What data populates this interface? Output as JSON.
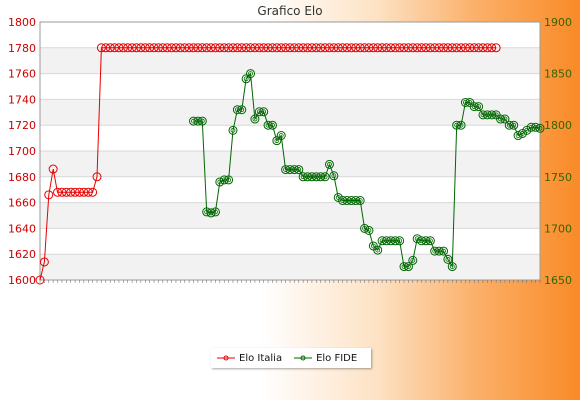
{
  "chart_data": {
    "type": "line",
    "title": "Grafico Elo",
    "y_left": {
      "ylim": [
        1600,
        1800
      ],
      "ticks": [
        1600,
        1620,
        1640,
        1660,
        1680,
        1700,
        1720,
        1740,
        1760,
        1780,
        1800
      ],
      "color": "#cc0000"
    },
    "y_right": {
      "ylim": [
        1650,
        1900
      ],
      "ticks": [
        1650,
        1700,
        1750,
        1800,
        1850,
        1900
      ],
      "color": "#336600"
    },
    "grid": true,
    "legend_position": "bottom-center",
    "n_points": 115,
    "series": [
      {
        "name": "Elo Italia",
        "axis": "left",
        "color": "#e80000",
        "values": [
          1600,
          1614,
          1666,
          1686,
          1668,
          1668,
          1668,
          1668,
          1668,
          1668,
          1668,
          1668,
          1668,
          1680,
          1780,
          1780,
          1780,
          1780,
          1780,
          1780,
          1780,
          1780,
          1780,
          1780,
          1780,
          1780,
          1780,
          1780,
          1780,
          1780,
          1780,
          1780,
          1780,
          1780,
          1780,
          1780,
          1780,
          1780,
          1780,
          1780,
          1780,
          1780,
          1780,
          1780,
          1780,
          1780,
          1780,
          1780,
          1780,
          1780,
          1780,
          1780,
          1780,
          1780,
          1780,
          1780,
          1780,
          1780,
          1780,
          1780,
          1780,
          1780,
          1780,
          1780,
          1780,
          1780,
          1780,
          1780,
          1780,
          1780,
          1780,
          1780,
          1780,
          1780,
          1780,
          1780,
          1780,
          1780,
          1780,
          1780,
          1780,
          1780,
          1780,
          1780,
          1780,
          1780,
          1780,
          1780,
          1780,
          1780,
          1780,
          1780,
          1780,
          1780,
          1780,
          1780,
          1780,
          1780,
          1780,
          1780,
          1780,
          1780,
          1780,
          1780,
          1780
        ]
      },
      {
        "name": "Elo FIDE",
        "axis": "right",
        "color": "#006600",
        "values": [
          1804,
          1804,
          1804,
          1716,
          1715,
          1716,
          1745,
          1747,
          1747,
          1795,
          1815,
          1815,
          1845,
          1850,
          1806,
          1813,
          1813,
          1800,
          1800,
          1785,
          1790,
          1757,
          1757,
          1757,
          1757,
          1750,
          1750,
          1750,
          1750,
          1750,
          1750,
          1762,
          1751,
          1730,
          1727,
          1727,
          1727,
          1727,
          1727,
          1700,
          1698,
          1683,
          1679,
          1688,
          1688,
          1688,
          1688,
          1688,
          1663,
          1663,
          1669,
          1690,
          1688,
          1688,
          1688,
          1678,
          1678,
          1678,
          1670,
          1663,
          1800,
          1800,
          1822,
          1822,
          1818,
          1818,
          1810,
          1810,
          1810,
          1810,
          1806,
          1806,
          1800,
          1800,
          1790,
          1792,
          1795,
          1798,
          1798,
          1797
        ]
      }
    ]
  }
}
